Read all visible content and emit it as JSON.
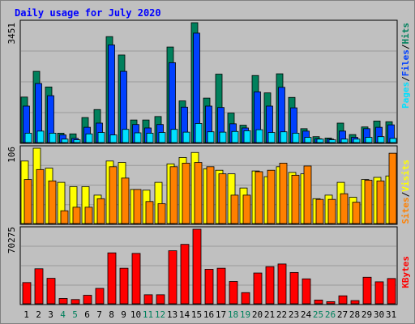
{
  "title": "Daily usage for July 2020",
  "colors": {
    "background": "#c0c0c0",
    "plot_bg": "#c0c0c0",
    "grid": "#9a9a9a",
    "hits": "#00805c",
    "files": "#0040ff",
    "pages": "#00e0ff",
    "visits": "#ffff00",
    "sites": "#ff8000",
    "kbytes": "#ff0000",
    "weekday_label": "#000000",
    "weekend_label": "#00805c",
    "title": "#0000ff"
  },
  "panel_labels": {
    "top_max": "3451",
    "middle_max": "106",
    "bottom_max": "70275",
    "hits": "Hits",
    "files": "Files",
    "pages": "Pages",
    "visits": "Visits",
    "sites": "Sites",
    "kbytes": "KBytes",
    "separator": "/"
  },
  "chart_data": {
    "type": "bar",
    "title": "Daily usage for July 2020",
    "categories": [
      "1",
      "2",
      "3",
      "4",
      "5",
      "6",
      "7",
      "8",
      "9",
      "10",
      "11",
      "12",
      "13",
      "14",
      "15",
      "16",
      "17",
      "18",
      "19",
      "20",
      "21",
      "22",
      "23",
      "24",
      "25",
      "26",
      "27",
      "28",
      "29",
      "30",
      "31"
    ],
    "weekend_days": [
      "4",
      "5",
      "11",
      "12",
      "18",
      "19",
      "25",
      "26"
    ],
    "panels": [
      {
        "name": "hits-files-pages",
        "ylim": [
          0,
          3451
        ],
        "y_tick_label": "3451",
        "series": [
          {
            "name": "Hits",
            "values": [
              1310,
              2050,
              1600,
              270,
              250,
              720,
              950,
              3050,
              2520,
              650,
              650,
              750,
              2750,
              1200,
              3451,
              1280,
              1970,
              850,
              500,
              1930,
              1430,
              1980,
              1300,
              400,
              170,
              130,
              560,
              230,
              450,
              620,
              600
            ]
          },
          {
            "name": "Files",
            "values": [
              1050,
              1700,
              1350,
              220,
              120,
              440,
              560,
              2810,
              2050,
              520,
              420,
              520,
              2300,
              1020,
              3150,
              1050,
              1010,
              540,
              420,
              1460,
              1050,
              1590,
              1000,
              330,
              110,
              100,
              330,
              150,
              400,
              440,
              510
            ]
          },
          {
            "name": "Pages",
            "values": [
              270,
              330,
              270,
              100,
              80,
              250,
              290,
              220,
              380,
              280,
              270,
              290,
              380,
              300,
              550,
              310,
              300,
              320,
              340,
              370,
              290,
              310,
              270,
              150,
              100,
              80,
              100,
              100,
              150,
              170,
              120
            ]
          }
        ]
      },
      {
        "name": "visits-sites",
        "ylim": [
          0,
          106
        ],
        "y_tick_label": "106",
        "series": [
          {
            "name": "Visits",
            "values": [
              88,
              106,
              78,
              58,
              52,
              52,
              40,
              88,
              86,
              48,
              47,
              58,
              84,
              93,
              100,
              77,
              75,
              70,
              50,
              74,
              66,
              80,
              72,
              70,
              35,
              40,
              58,
              37,
              62,
              65,
              67
            ]
          },
          {
            "name": "Sites",
            "values": [
              62,
              76,
              60,
              18,
              23,
              23,
              35,
              80,
              64,
              48,
              31,
              28,
              80,
              85,
              86,
              80,
              70,
              40,
              40,
              73,
              75,
              85,
              68,
              81,
              34,
              34,
              42,
              30,
              61,
              60,
              99
            ]
          }
        ]
      },
      {
        "name": "kbytes",
        "ylim": [
          0,
          70275
        ],
        "y_tick_label": "70275",
        "series": [
          {
            "name": "KBytes",
            "values": [
              20000,
              33000,
              24000,
              5000,
              4000,
              8000,
              14500,
              48000,
              33500,
              47500,
              8500,
              8500,
              50000,
              56000,
              70275,
              32500,
              33500,
              21000,
              10500,
              29000,
              35000,
              37500,
              29500,
              23500,
              3500,
              2000,
              7500,
              3000,
              25000,
              20700,
              23800
            ]
          }
        ]
      }
    ]
  }
}
